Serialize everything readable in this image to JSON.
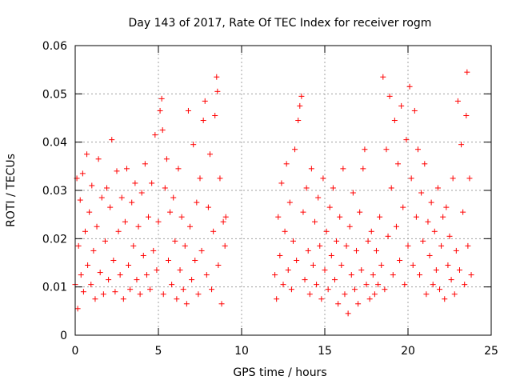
{
  "chart_data": {
    "type": "scatter",
    "title": "Day 143 of 2017, Rate Of TEC Index for receiver rogm",
    "xlabel": "GPS time / hours",
    "ylabel": "ROTI / TECUs",
    "xlim": [
      0,
      25
    ],
    "ylim": [
      0,
      0.06
    ],
    "xticks": [
      "0",
      "5",
      "10",
      "15",
      "20",
      "25"
    ],
    "yticks": [
      "0",
      "0.01",
      "0.02",
      "0.03",
      "0.04",
      "0.05",
      "0.06"
    ],
    "grid": true,
    "legend": "none",
    "marker": "plus",
    "color": "#ff0000",
    "series": [
      {
        "points": [
          [
            0.0,
            0.0105
          ],
          [
            0.1,
            0.0325
          ],
          [
            0.15,
            0.0055
          ],
          [
            0.2,
            0.0185
          ],
          [
            0.3,
            0.028
          ],
          [
            0.35,
            0.0125
          ],
          [
            0.45,
            0.0335
          ],
          [
            0.5,
            0.009
          ],
          [
            0.6,
            0.0215
          ],
          [
            0.7,
            0.0375
          ],
          [
            0.75,
            0.0145
          ],
          [
            0.85,
            0.0255
          ],
          [
            0.95,
            0.0105
          ],
          [
            1.0,
            0.031
          ],
          [
            1.1,
            0.0175
          ],
          [
            1.2,
            0.0075
          ],
          [
            1.3,
            0.0225
          ],
          [
            1.4,
            0.0365
          ],
          [
            1.5,
            0.013
          ],
          [
            1.6,
            0.0285
          ],
          [
            1.7,
            0.0085
          ],
          [
            1.8,
            0.0195
          ],
          [
            1.9,
            0.0305
          ],
          [
            2.0,
            0.0115
          ],
          [
            2.1,
            0.0265
          ],
          [
            2.2,
            0.0405
          ],
          [
            2.3,
            0.0155
          ],
          [
            2.4,
            0.009
          ],
          [
            2.5,
            0.034
          ],
          [
            2.6,
            0.0215
          ],
          [
            2.7,
            0.0125
          ],
          [
            2.8,
            0.0285
          ],
          [
            2.9,
            0.0075
          ],
          [
            3.0,
            0.0235
          ],
          [
            3.1,
            0.0345
          ],
          [
            3.2,
            0.0145
          ],
          [
            3.3,
            0.0095
          ],
          [
            3.4,
            0.0275
          ],
          [
            3.5,
            0.0185
          ],
          [
            3.6,
            0.0315
          ],
          [
            3.7,
            0.0115
          ],
          [
            3.8,
            0.0225
          ],
          [
            3.9,
            0.0085
          ],
          [
            4.0,
            0.0295
          ],
          [
            4.1,
            0.0165
          ],
          [
            4.2,
            0.0355
          ],
          [
            4.3,
            0.0125
          ],
          [
            4.4,
            0.0245
          ],
          [
            4.5,
            0.0095
          ],
          [
            4.6,
            0.0315
          ],
          [
            4.7,
            0.0175
          ],
          [
            4.8,
            0.0415
          ],
          [
            4.9,
            0.0135
          ],
          [
            5.0,
            0.0235
          ],
          [
            5.1,
            0.0465
          ],
          [
            5.2,
            0.049
          ],
          [
            5.25,
            0.0425
          ],
          [
            5.3,
            0.0085
          ],
          [
            5.4,
            0.0305
          ],
          [
            5.5,
            0.0365
          ],
          [
            5.6,
            0.0155
          ],
          [
            5.7,
            0.0255
          ],
          [
            5.8,
            0.0105
          ],
          [
            5.9,
            0.0285
          ],
          [
            6.0,
            0.0195
          ],
          [
            6.1,
            0.0075
          ],
          [
            6.2,
            0.0345
          ],
          [
            6.3,
            0.0135
          ],
          [
            6.4,
            0.0245
          ],
          [
            6.5,
            0.0095
          ],
          [
            6.6,
            0.0185
          ],
          [
            6.7,
            0.0065
          ],
          [
            6.8,
            0.0465
          ],
          [
            6.9,
            0.0225
          ],
          [
            7.0,
            0.0115
          ],
          [
            7.1,
            0.0395
          ],
          [
            7.2,
            0.0155
          ],
          [
            7.3,
            0.0275
          ],
          [
            7.4,
            0.0085
          ],
          [
            7.5,
            0.0325
          ],
          [
            7.6,
            0.0175
          ],
          [
            7.7,
            0.0445
          ],
          [
            7.8,
            0.0485
          ],
          [
            7.9,
            0.0125
          ],
          [
            8.0,
            0.0265
          ],
          [
            8.1,
            0.0375
          ],
          [
            8.2,
            0.0095
          ],
          [
            8.3,
            0.0215
          ],
          [
            8.4,
            0.0455
          ],
          [
            8.5,
            0.0535
          ],
          [
            8.55,
            0.0505
          ],
          [
            8.6,
            0.0145
          ],
          [
            8.7,
            0.0325
          ],
          [
            8.8,
            0.0065
          ],
          [
            8.9,
            0.0235
          ],
          [
            9.0,
            0.0185
          ],
          [
            9.05,
            0.0245
          ],
          [
            12.0,
            0.0125
          ],
          [
            12.1,
            0.0075
          ],
          [
            12.2,
            0.0245
          ],
          [
            12.3,
            0.0165
          ],
          [
            12.4,
            0.0315
          ],
          [
            12.5,
            0.0105
          ],
          [
            12.6,
            0.0215
          ],
          [
            12.7,
            0.0355
          ],
          [
            12.8,
            0.0135
          ],
          [
            12.9,
            0.0275
          ],
          [
            13.0,
            0.0095
          ],
          [
            13.1,
            0.0195
          ],
          [
            13.2,
            0.0385
          ],
          [
            13.3,
            0.0155
          ],
          [
            13.4,
            0.0445
          ],
          [
            13.5,
            0.0475
          ],
          [
            13.6,
            0.0495
          ],
          [
            13.7,
            0.0255
          ],
          [
            13.8,
            0.0115
          ],
          [
            13.9,
            0.0305
          ],
          [
            14.0,
            0.0175
          ],
          [
            14.1,
            0.0085
          ],
          [
            14.2,
            0.0345
          ],
          [
            14.3,
            0.0145
          ],
          [
            14.4,
            0.0235
          ],
          [
            14.5,
            0.0105
          ],
          [
            14.6,
            0.0285
          ],
          [
            14.7,
            0.0185
          ],
          [
            14.8,
            0.0075
          ],
          [
            14.9,
            0.0325
          ],
          [
            15.0,
            0.0135
          ],
          [
            15.1,
            0.0215
          ],
          [
            15.2,
            0.0095
          ],
          [
            15.3,
            0.0265
          ],
          [
            15.4,
            0.0165
          ],
          [
            15.5,
            0.0305
          ],
          [
            15.6,
            0.0115
          ],
          [
            15.7,
            0.0195
          ],
          [
            15.8,
            0.0065
          ],
          [
            15.9,
            0.0245
          ],
          [
            16.0,
            0.0145
          ],
          [
            16.1,
            0.0345
          ],
          [
            16.2,
            0.0085
          ],
          [
            16.3,
            0.0185
          ],
          [
            16.4,
            0.0045
          ],
          [
            16.5,
            0.0225
          ],
          [
            16.6,
            0.0125
          ],
          [
            16.7,
            0.0295
          ],
          [
            16.8,
            0.0095
          ],
          [
            16.9,
            0.0175
          ],
          [
            17.0,
            0.0065
          ],
          [
            17.1,
            0.0255
          ],
          [
            17.2,
            0.0135
          ],
          [
            17.3,
            0.0345
          ],
          [
            17.4,
            0.0385
          ],
          [
            17.5,
            0.0105
          ],
          [
            17.6,
            0.0195
          ],
          [
            17.7,
            0.0075
          ],
          [
            17.8,
            0.0215
          ],
          [
            17.9,
            0.0125
          ],
          [
            18.0,
            0.0085
          ],
          [
            18.1,
            0.0175
          ],
          [
            18.2,
            0.0105
          ],
          [
            18.3,
            0.0245
          ],
          [
            18.4,
            0.0145
          ],
          [
            18.5,
            0.0535
          ],
          [
            18.6,
            0.0095
          ],
          [
            18.7,
            0.0385
          ],
          [
            18.8,
            0.0205
          ],
          [
            18.9,
            0.0495
          ],
          [
            19.0,
            0.0305
          ],
          [
            19.1,
            0.0125
          ],
          [
            19.2,
            0.0445
          ],
          [
            19.3,
            0.0225
          ],
          [
            19.4,
            0.0355
          ],
          [
            19.5,
            0.0155
          ],
          [
            19.6,
            0.0475
          ],
          [
            19.7,
            0.0265
          ],
          [
            19.8,
            0.0105
          ],
          [
            19.9,
            0.0405
          ],
          [
            20.0,
            0.0185
          ],
          [
            20.1,
            0.0515
          ],
          [
            20.2,
            0.0325
          ],
          [
            20.3,
            0.0145
          ],
          [
            20.4,
            0.0465
          ],
          [
            20.5,
            0.0245
          ],
          [
            20.6,
            0.0385
          ],
          [
            20.7,
            0.0125
          ],
          [
            20.8,
            0.0295
          ],
          [
            20.9,
            0.0195
          ],
          [
            21.0,
            0.0355
          ],
          [
            21.1,
            0.0085
          ],
          [
            21.2,
            0.0235
          ],
          [
            21.3,
            0.0165
          ],
          [
            21.4,
            0.0275
          ],
          [
            21.5,
            0.0105
          ],
          [
            21.6,
            0.0215
          ],
          [
            21.7,
            0.0135
          ],
          [
            21.8,
            0.0305
          ],
          [
            21.9,
            0.0095
          ],
          [
            22.0,
            0.0185
          ],
          [
            22.1,
            0.0245
          ],
          [
            22.2,
            0.0075
          ],
          [
            22.3,
            0.0265
          ],
          [
            22.4,
            0.0145
          ],
          [
            22.5,
            0.0205
          ],
          [
            22.6,
            0.0115
          ],
          [
            22.7,
            0.0325
          ],
          [
            22.8,
            0.0085
          ],
          [
            22.9,
            0.0175
          ],
          [
            23.0,
            0.0485
          ],
          [
            23.1,
            0.0135
          ],
          [
            23.2,
            0.0395
          ],
          [
            23.3,
            0.0255
          ],
          [
            23.4,
            0.0105
          ],
          [
            23.5,
            0.0455
          ],
          [
            23.55,
            0.0545
          ],
          [
            23.6,
            0.0185
          ],
          [
            23.7,
            0.0325
          ],
          [
            23.8,
            0.0125
          ]
        ]
      }
    ]
  }
}
